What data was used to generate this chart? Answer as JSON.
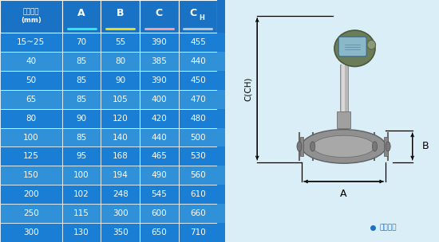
{
  "headers": [
    "仪表口径\n(mm)",
    "A",
    "B",
    "C",
    "CH"
  ],
  "col_underline_colors": [
    "none",
    "#2ee8e8",
    "#e8d820",
    "#f0a0a0",
    "#c0c0c0"
  ],
  "rows": [
    [
      "15~25",
      "70",
      "55",
      "390",
      "455"
    ],
    [
      "40",
      "85",
      "80",
      "385",
      "440"
    ],
    [
      "50",
      "85",
      "90",
      "390",
      "450"
    ],
    [
      "65",
      "85",
      "105",
      "400",
      "470"
    ],
    [
      "80",
      "90",
      "120",
      "420",
      "480"
    ],
    [
      "100",
      "85",
      "140",
      "440",
      "500"
    ],
    [
      "125",
      "95",
      "168",
      "465",
      "530"
    ],
    [
      "150",
      "100",
      "194",
      "490",
      "560"
    ],
    [
      "200",
      "102",
      "248",
      "545",
      "610"
    ],
    [
      "250",
      "115",
      "300",
      "600",
      "660"
    ],
    [
      "300",
      "130",
      "350",
      "650",
      "710"
    ]
  ],
  "dark_blue": "#1a7fd4",
  "mid_blue": "#3090d8",
  "header_blue": "#1a72c5",
  "bg_color": "#daeef8",
  "dark_rows": [
    0,
    2,
    4,
    6,
    8,
    10
  ],
  "col_widths": [
    1.6,
    1.0,
    1.0,
    1.0,
    1.0
  ]
}
